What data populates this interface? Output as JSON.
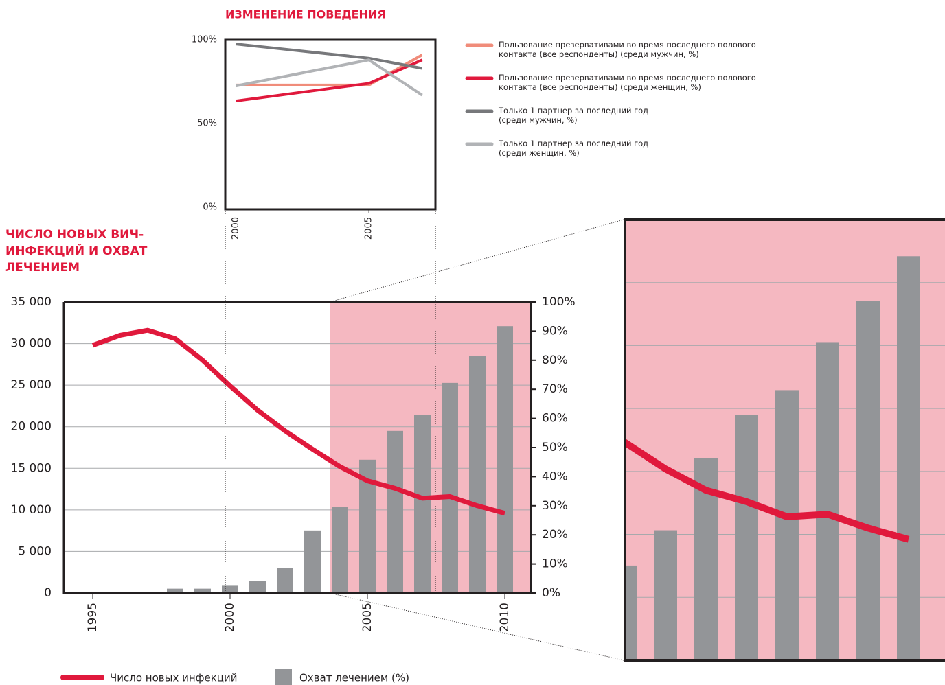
{
  "chart_data": [
    {
      "type": "line",
      "title": "ИЗМЕНЕНИЕ ПОВЕДЕНИЯ",
      "x": [
        2000,
        2005,
        2007
      ],
      "xlim": [
        1999.6,
        2007.5
      ],
      "xticks": [
        2000,
        2005
      ],
      "ylim": [
        0,
        100
      ],
      "yticks": [
        {
          "value": 0,
          "label": "0%"
        },
        {
          "value": 50,
          "label": "50%"
        },
        {
          "value": 100,
          "label": "100%"
        }
      ],
      "series": [
        {
          "name": "Пользование презервативами во время последнего полового\nконтакта (все респонденты) (среди мужчин, %)",
          "color": "#f08c7a",
          "values": [
            73,
            73,
            91
          ]
        },
        {
          "name": "Пользование презервативами во время последнего полового\nконтакта (все респонденты) (среди женщин, %)",
          "color": "#e0193c",
          "values": [
            63.5,
            74,
            88
          ]
        },
        {
          "name": "Только 1 партнер за последний год\n(среди мужчин, %)",
          "color": "#77787b",
          "values": [
            97.5,
            89,
            83
          ]
        },
        {
          "name": "Только 1 партнер за последний год\n(среди женщин, %)",
          "color": "#b1b3b6",
          "values": [
            72.5,
            88,
            67
          ]
        }
      ]
    },
    {
      "type": "combo",
      "title": "ЧИСЛО НОВЫХ ВИЧ-\nИНФЕКЦИЙ И ОХВАТ\nЛЕЧЕНИЕМ",
      "x": [
        1995,
        1996,
        1997,
        1998,
        1999,
        2000,
        2001,
        2002,
        2003,
        2004,
        2005,
        2006,
        2007,
        2008,
        2009,
        2010
      ],
      "xlim": [
        1993.95,
        2010.95
      ],
      "xticks": [
        1995,
        2000,
        2005,
        2010
      ],
      "ylim": [
        0,
        35000
      ],
      "yticks": [
        0,
        {
          "value": 5000,
          "label": "5 000"
        },
        {
          "value": 10000,
          "label": "10 000"
        },
        {
          "value": 15000,
          "label": "15 000"
        },
        {
          "value": 20000,
          "label": "20 000"
        },
        {
          "value": 25000,
          "label": "25 000"
        },
        {
          "value": 30000,
          "label": "30 000"
        },
        {
          "value": 35000,
          "label": "35 000"
        }
      ],
      "y2lim": [
        0,
        100
      ],
      "y2ticks": [
        {
          "value": 0,
          "label": "0%"
        },
        {
          "value": 10,
          "label": "10%"
        },
        {
          "value": 20,
          "label": "20%"
        },
        {
          "value": 30,
          "label": "30%"
        },
        {
          "value": 40,
          "label": "40%"
        },
        {
          "value": 50,
          "label": "50%"
        },
        {
          "value": 60,
          "label": "60%"
        },
        {
          "value": 70,
          "label": "70%"
        },
        {
          "value": 80,
          "label": "80%"
        },
        {
          "value": 90,
          "label": "90%"
        },
        {
          "value": 100,
          "label": "100%"
        }
      ],
      "grid": true,
      "series": [
        {
          "name": "Число новых инфекций",
          "type": "line",
          "color": "#e0193c",
          "values": [
            29800,
            31000,
            31600,
            30600,
            28000,
            24900,
            22000,
            19500,
            17300,
            15200,
            13500,
            12600,
            11400,
            11600,
            10500,
            9600
          ]
        },
        {
          "name": "Охват лечением (%)",
          "type": "bar",
          "axis": "y2",
          "color": "#939598",
          "values": [
            null,
            null,
            null,
            1.5,
            1.5,
            2.5,
            4.2,
            8.7,
            21.5,
            29.5,
            45.8,
            55.7,
            61.3,
            72.2,
            81.6,
            91.7
          ]
        }
      ]
    }
  ]
}
